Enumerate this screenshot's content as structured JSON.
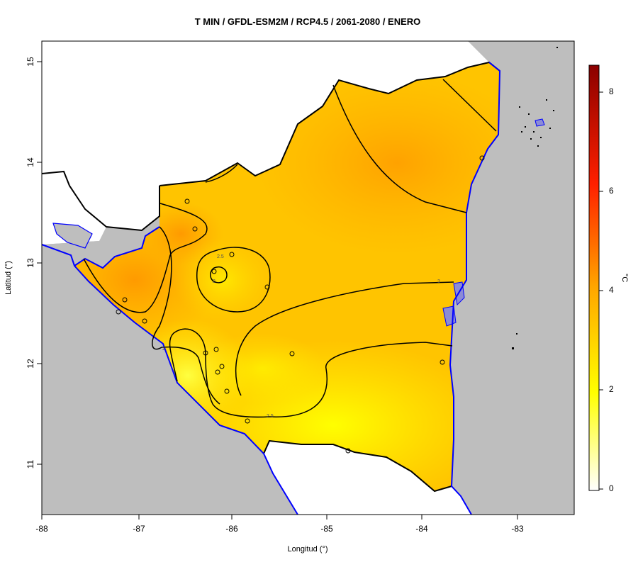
{
  "title": "T MIN / GFDL-ESM2M / RCP4.5 / 2061-2080 / ENERO",
  "x_axis": {
    "label": "Longitud (°)",
    "ticks": [
      "-88",
      "-87",
      "-86",
      "-85",
      "-84",
      "-83"
    ]
  },
  "y_axis": {
    "label": "Latitud (°)",
    "ticks": [
      "15",
      "14",
      "13",
      "12",
      "11"
    ]
  },
  "colorbar": {
    "unit": "°C",
    "ticks": [
      "0",
      "2",
      "4",
      "6",
      "8"
    ]
  },
  "contour_labels": [
    "2.5",
    "2",
    "3",
    "2",
    "2.5"
  ],
  "colors": {
    "ocean": "#bebebe",
    "coastline": "#0000ff",
    "border": "#000000",
    "water_body": "#8c8cd6",
    "cold": "#ffff00",
    "mid": "#ffbf00",
    "warm": "#ff8c00"
  }
}
